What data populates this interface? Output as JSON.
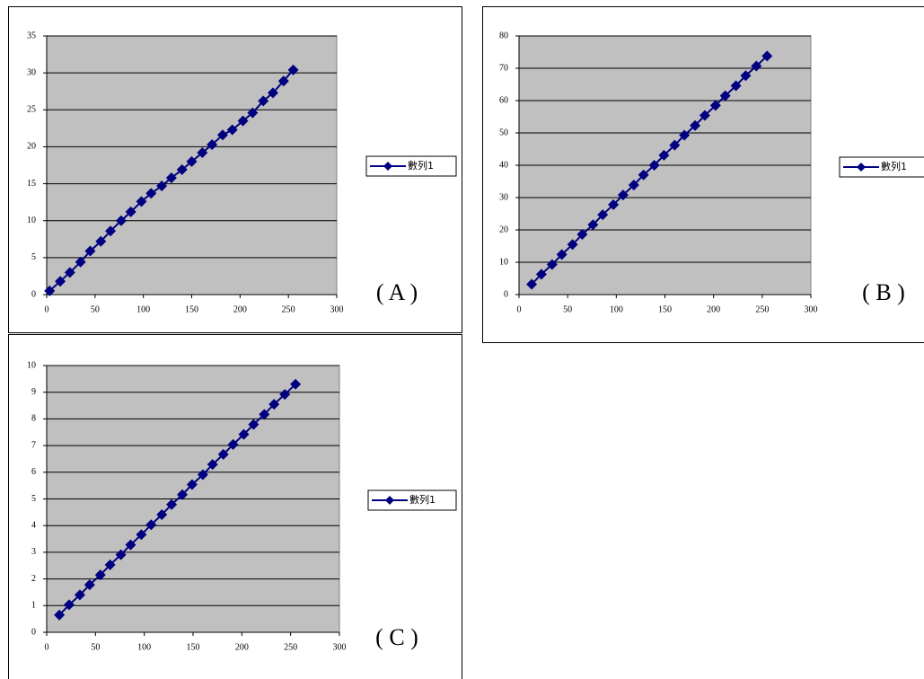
{
  "chart_data": [
    {
      "type": "line",
      "annotation": "( A )",
      "x": [
        3,
        14,
        24,
        35,
        45,
        56,
        66,
        77,
        87,
        98,
        108,
        119,
        129,
        140,
        150,
        161,
        171,
        182,
        192,
        203,
        213,
        224,
        234,
        245,
        255
      ],
      "series": [
        {
          "name": "數列1",
          "color": "#000080",
          "values": [
            0.5,
            1.8,
            3.0,
            4.4,
            5.9,
            7.2,
            8.6,
            10.0,
            11.2,
            12.6,
            13.7,
            14.7,
            15.8,
            16.9,
            18.0,
            19.2,
            20.3,
            21.6,
            22.3,
            23.5,
            24.6,
            26.2,
            27.3,
            28.9,
            30.4
          ]
        }
      ],
      "xlim": [
        0,
        300
      ],
      "xticks": [
        0,
        50,
        100,
        150,
        200,
        250,
        300
      ],
      "ylim": [
        0,
        35
      ],
      "yticks": [
        0,
        5,
        10,
        15,
        20,
        25,
        30,
        35
      ],
      "grid": true
    },
    {
      "type": "line",
      "annotation": "( B )",
      "x": [
        13,
        23,
        34,
        44,
        55,
        65,
        76,
        86,
        97,
        107,
        118,
        128,
        139,
        149,
        160,
        170,
        181,
        191,
        202,
        212,
        223,
        233,
        244,
        255
      ],
      "series": [
        {
          "name": "數列1",
          "color": "#000080",
          "values": [
            3.2,
            6.3,
            9.3,
            12.4,
            15.5,
            18.6,
            21.6,
            24.7,
            27.8,
            30.8,
            33.9,
            37.0,
            40.0,
            43.1,
            46.2,
            49.3,
            52.3,
            55.4,
            58.5,
            61.5,
            64.6,
            67.7,
            70.7,
            73.8
          ]
        }
      ],
      "xlim": [
        0,
        300
      ],
      "xticks": [
        0,
        50,
        100,
        150,
        200,
        250,
        300
      ],
      "ylim": [
        0,
        80
      ],
      "yticks": [
        0,
        10,
        20,
        30,
        40,
        50,
        60,
        70,
        80
      ],
      "grid": true
    },
    {
      "type": "line",
      "annotation": "( C )",
      "x": [
        13,
        23,
        34,
        44,
        55,
        65,
        76,
        86,
        97,
        107,
        118,
        128,
        139,
        149,
        160,
        170,
        181,
        191,
        202,
        212,
        223,
        233,
        244,
        255
      ],
      "series": [
        {
          "name": "數列1",
          "color": "#000080",
          "values": [
            0.65,
            1.03,
            1.4,
            1.78,
            2.15,
            2.53,
            2.91,
            3.28,
            3.66,
            4.03,
            4.41,
            4.79,
            5.16,
            5.54,
            5.91,
            6.29,
            6.67,
            7.04,
            7.42,
            7.79,
            8.17,
            8.55,
            8.92,
            9.3
          ]
        }
      ],
      "xlim": [
        0,
        300
      ],
      "xticks": [
        0,
        50,
        100,
        150,
        200,
        250,
        300
      ],
      "ylim": [
        0,
        10
      ],
      "yticks": [
        0,
        1,
        2,
        3,
        4,
        5,
        6,
        7,
        8,
        9,
        10
      ],
      "grid": true
    }
  ]
}
